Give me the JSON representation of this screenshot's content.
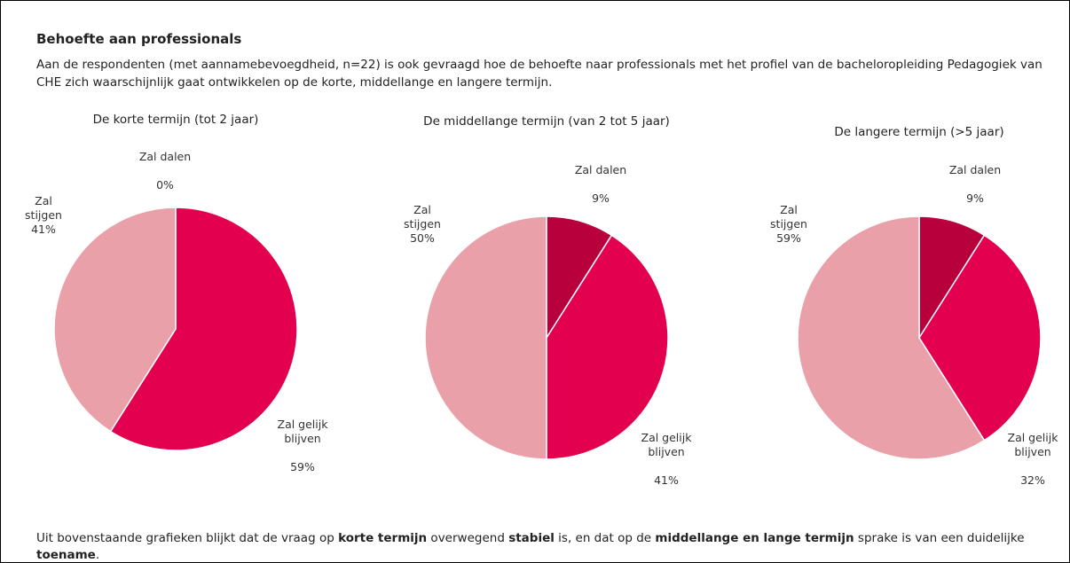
{
  "heading": "Behoefte aan professionals",
  "intro": "Aan de respondenten (met aannamebevoegdheid, n=22) is ook gevraagd hoe de behoefte naar professionals met het profiel van de bacheloropleiding Pedagogiek van CHE zich waarschijnlijk gaat ontwikkelen op de korte, middellange en langere termijn.",
  "chart_data": [
    {
      "type": "pie",
      "title": "De korte termijn (tot 2 jaar)",
      "categories": [
        "Zal dalen",
        "Zal gelijk blijven",
        "Zal stijgen"
      ],
      "values": [
        0,
        59,
        41
      ],
      "value_labels": [
        "0%",
        "59%",
        "41%"
      ],
      "colors": [
        "#b8003c",
        "#e3004f",
        "#e9a0a9"
      ]
    },
    {
      "type": "pie",
      "title": "De middellange termijn (van 2 tot 5 jaar)",
      "categories": [
        "Zal dalen",
        "Zal gelijk blijven",
        "Zal stijgen"
      ],
      "values": [
        9,
        41,
        50
      ],
      "value_labels": [
        "9%",
        "41%",
        "50%"
      ],
      "colors": [
        "#b8003c",
        "#e3004f",
        "#e9a0a9"
      ]
    },
    {
      "type": "pie",
      "title": "De langere termijn (>5 jaar)",
      "categories": [
        "Zal dalen",
        "Zal gelijk blijven",
        "Zal stijgen"
      ],
      "values": [
        9,
        32,
        59
      ],
      "value_labels": [
        "9%",
        "32%",
        "59%"
      ],
      "colors": [
        "#b8003c",
        "#e3004f",
        "#e9a0a9"
      ]
    }
  ],
  "conclusion": [
    "Uit bovenstaande grafieken blijkt dat de vraag op ",
    "korte termijn",
    " overwegend ",
    "stabiel",
    " is, en dat op de ",
    "middellange en lange termijn",
    " sprake is van een duidelijke ",
    "toename",
    "."
  ]
}
